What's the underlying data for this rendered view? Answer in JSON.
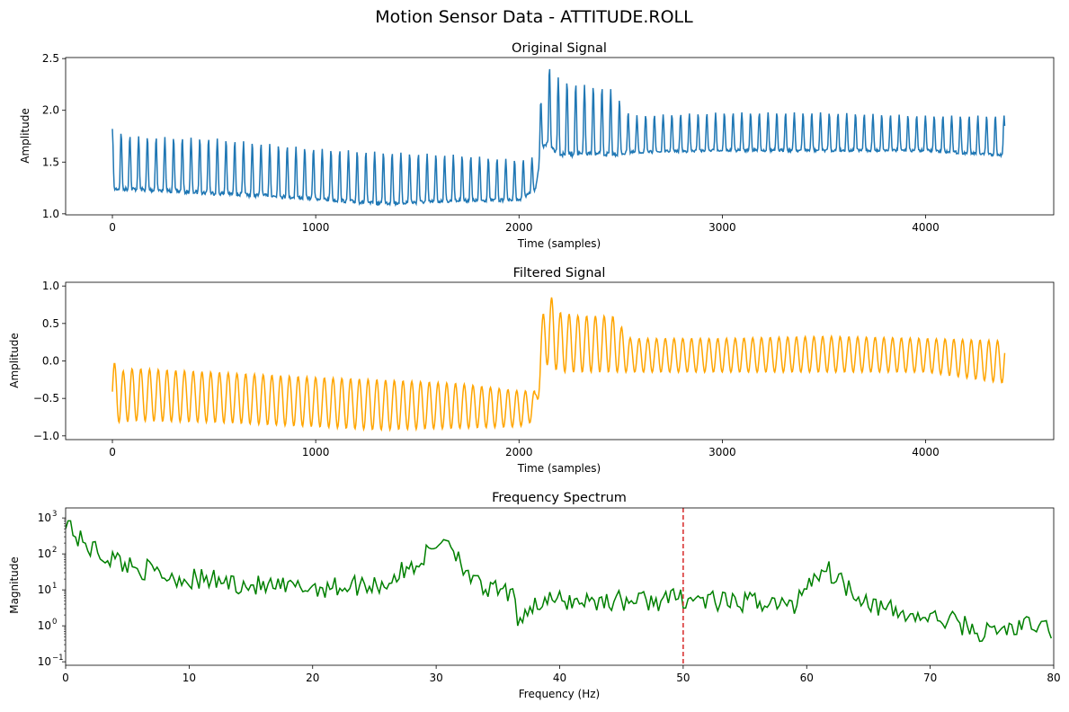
{
  "figure": {
    "title": "Motion Sensor Data - ATTITUDE.ROLL"
  },
  "chart_data": [
    {
      "type": "line",
      "title": "Original Signal",
      "xlabel": "Time (samples)",
      "ylabel": "Amplitude",
      "xlim": [
        -230,
        4630
      ],
      "ylim": [
        0.99,
        2.51
      ],
      "xticks": [
        0,
        1000,
        2000,
        3000,
        4000
      ],
      "yticks": [
        1.0,
        1.5,
        2.0,
        2.5
      ],
      "xtick_labels": [
        "0",
        "1000",
        "2000",
        "3000",
        "4000"
      ],
      "ytick_labels": [
        "1.0",
        "1.5",
        "2.0",
        "2.5"
      ],
      "grid": false,
      "series": [
        {
          "color": "#1f77b4",
          "x_range": [
            0,
            4390
          ],
          "envelope": {
            "x": [
              0,
              100,
              500,
              1000,
              1300,
              1700,
              2000,
              2080,
              2110,
              2140,
              2200,
              2300,
              2400,
              2460,
              2550,
              3000,
              3500,
              4000,
              4390
            ],
            "y_min": [
              1.22,
              1.22,
              1.18,
              1.13,
              1.08,
              1.11,
              1.12,
              1.22,
              1.6,
              1.65,
              1.55,
              1.55,
              1.55,
              1.55,
              1.58,
              1.6,
              1.6,
              1.6,
              1.55
            ],
            "y_max": [
              1.82,
              1.75,
              1.73,
              1.63,
              1.6,
              1.57,
              1.52,
              1.55,
              2.15,
              2.45,
              2.3,
              2.25,
              2.23,
              2.2,
              1.95,
              1.98,
              1.98,
              1.95,
              1.95
            ]
          },
          "cycle_period_samples": 43
        }
      ]
    },
    {
      "type": "line",
      "title": "Filtered Signal",
      "xlabel": "Time (samples)",
      "ylabel": "Amplitude",
      "xlim": [
        -230,
        4630
      ],
      "ylim": [
        -1.05,
        1.05
      ],
      "xticks": [
        0,
        1000,
        2000,
        3000,
        4000
      ],
      "yticks": [
        -1.0,
        -0.5,
        0.0,
        0.5,
        1.0
      ],
      "xtick_labels": [
        "0",
        "1000",
        "2000",
        "3000",
        "4000"
      ],
      "ytick_labels": [
        "−1.0",
        "−0.5",
        "0.0",
        "0.5",
        "1.0"
      ],
      "grid": false,
      "series": [
        {
          "color": "#ffa500",
          "x_range": [
            0,
            4390
          ],
          "envelope": {
            "x": [
              0,
              60,
              100,
              500,
              1000,
              1300,
              1700,
              2000,
              2080,
              2110,
              2140,
              2200,
              2300,
              2400,
              2460,
              2550,
              3000,
              3500,
              4000,
              4390
            ],
            "y_min": [
              -0.82,
              -0.82,
              -0.8,
              -0.82,
              -0.88,
              -0.92,
              -0.9,
              -0.88,
              -0.8,
              -0.2,
              -0.05,
              -0.15,
              -0.15,
              -0.15,
              -0.15,
              -0.15,
              -0.15,
              -0.15,
              -0.15,
              -0.3
            ],
            "y_max": [
              0.0,
              -0.15,
              -0.1,
              -0.15,
              -0.22,
              -0.25,
              -0.3,
              -0.4,
              -0.4,
              0.5,
              0.95,
              0.65,
              0.6,
              0.6,
              0.6,
              0.3,
              0.3,
              0.33,
              0.3,
              0.27
            ]
          },
          "cycle_period_samples": 43
        }
      ]
    },
    {
      "type": "line",
      "title": "Frequency Spectrum",
      "xlabel": "Frequency (Hz)",
      "ylabel": "Magnitude",
      "xlim": [
        0,
        80
      ],
      "ylim": [
        0.08,
        1900
      ],
      "yscale": "log",
      "xticks": [
        0,
        10,
        20,
        30,
        40,
        50,
        60,
        70,
        80
      ],
      "xtick_labels": [
        "0",
        "10",
        "20",
        "30",
        "40",
        "50",
        "60",
        "70",
        "80"
      ],
      "yticks": [
        0.1,
        1,
        10,
        100,
        1000
      ],
      "ytick_labels": [
        "10",
        "10",
        "10",
        "10",
        "10"
      ],
      "ytick_exponents": [
        "−1",
        "0",
        "1",
        "2",
        "3"
      ],
      "grid": false,
      "reference_line": {
        "x": 50,
        "color": "#d62728",
        "style": "dashed"
      },
      "series": [
        {
          "color": "#008000",
          "x": [
            0,
            0.5,
            1,
            2,
            3,
            4,
            5,
            6,
            8,
            10,
            12,
            14,
            16,
            18,
            20,
            22,
            24,
            26,
            28,
            29,
            30,
            30.5,
            31,
            31.5,
            32,
            33,
            34,
            35,
            36,
            36.5,
            38,
            40,
            42,
            44,
            46,
            48,
            50,
            52,
            54,
            56,
            58,
            59,
            60,
            61,
            61.5,
            62,
            63,
            64,
            65,
            66,
            68,
            70,
            72,
            74,
            76,
            78,
            80
          ],
          "y": [
            1000,
            500,
            250,
            150,
            90,
            70,
            50,
            40,
            25,
            20,
            18,
            15,
            12,
            11,
            12,
            12,
            14,
            15,
            40,
            80,
            150,
            300,
            250,
            120,
            60,
            15,
            10,
            9,
            8,
            1.5,
            4,
            5,
            5,
            5,
            5,
            5,
            6,
            5,
            4,
            5,
            4,
            3,
            15,
            30,
            40,
            30,
            15,
            8,
            5,
            3,
            2,
            1.6,
            1.3,
            0.6,
            0.8,
            1,
            0.8
          ]
        }
      ]
    }
  ]
}
